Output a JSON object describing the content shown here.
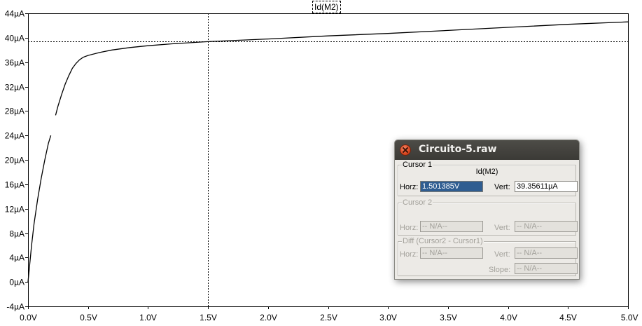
{
  "window": {
    "title": "Circuito-5.raw"
  },
  "trace_label": "Id(M2)",
  "colors": {
    "trace": "#000000",
    "cursor": "#000000",
    "axis": "#000000",
    "background": "#ffffff"
  },
  "chart_data": {
    "type": "line",
    "title": "Id(M2)",
    "xlabel": "",
    "ylabel": "",
    "xlim": [
      0.0,
      5.0
    ],
    "ylim": [
      -4,
      44
    ],
    "x_unit": "V",
    "y_unit": "µA",
    "grid": false,
    "x_ticks": [
      "0.0V",
      "0.5V",
      "1.0V",
      "1.5V",
      "2.0V",
      "2.5V",
      "3.0V",
      "3.5V",
      "4.0V",
      "4.5V",
      "5.0V"
    ],
    "y_ticks": [
      "-4µA",
      "0µA",
      "4µA",
      "8µA",
      "12µA",
      "16µA",
      "20µA",
      "24µA",
      "28µA",
      "32µA",
      "36µA",
      "40µA",
      "44µA"
    ],
    "series": [
      {
        "name": "Id(M2)",
        "segments": [
          {
            "x": [
              0.0,
              0.01,
              0.03,
              0.05,
              0.08,
              0.11,
              0.14,
              0.17,
              0.19
            ],
            "y": [
              0.0,
              2.0,
              6.0,
              9.5,
              13.5,
              17.0,
              20.0,
              22.7,
              24.0
            ]
          },
          {
            "x": [
              0.23,
              0.25,
              0.28,
              0.31,
              0.34,
              0.37,
              0.4,
              0.43,
              0.46,
              0.5,
              0.6,
              0.7,
              0.85,
              1.0,
              1.2,
              1.4,
              1.5,
              2.0,
              2.5,
              3.0,
              3.5,
              4.0,
              4.5,
              5.0
            ],
            "y": [
              27.3,
              28.8,
              30.7,
              32.4,
              33.8,
              35.0,
              35.8,
              36.4,
              36.8,
              37.1,
              37.6,
              38.0,
              38.4,
              38.7,
              39.0,
              39.25,
              39.36,
              39.8,
              40.3,
              40.7,
              41.2,
              41.7,
              42.2,
              42.6
            ]
          }
        ]
      }
    ],
    "cursor": {
      "x": 1.501385,
      "y": 39.35611
    }
  },
  "dialog": {
    "cursor1": {
      "legend": "Cursor 1",
      "trace": "Id(M2)",
      "horz_label": "Horz:",
      "horz_value": "1.501385V",
      "vert_label": "Vert:",
      "vert_value": "39.35611µA"
    },
    "cursor2": {
      "legend": "Cursor 2",
      "horz_label": "Horz:",
      "horz_value": "-- N/A--",
      "vert_label": "Vert:",
      "vert_value": "-- N/A--"
    },
    "diff": {
      "legend": "Diff (Cursor2 - Cursor1)",
      "horz_label": "Horz:",
      "horz_value": "-- N/A--",
      "vert_label": "Vert:",
      "vert_value": "-- N/A--",
      "slope_label": "Slope:",
      "slope_value": "-- N/A--"
    }
  }
}
